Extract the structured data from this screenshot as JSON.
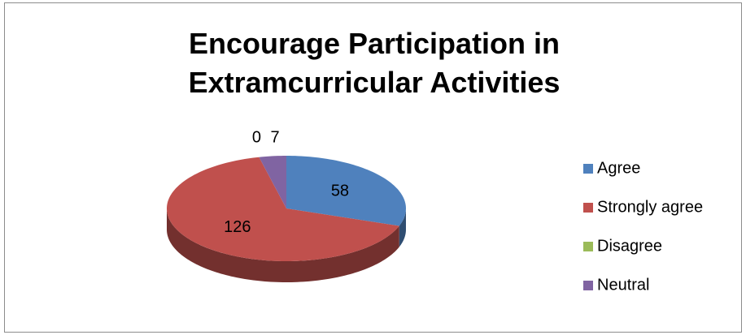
{
  "chart_data": {
    "type": "pie",
    "title": "Encourage Participation in Extramcurricular Activities",
    "categories": [
      "Agree",
      "Strongly agree",
      "Disagree",
      "Neutral"
    ],
    "values": [
      58,
      126,
      0,
      7
    ],
    "colors": [
      "#4f81bd",
      "#c0504d",
      "#9bbb59",
      "#8064a2"
    ],
    "legend": "right"
  }
}
